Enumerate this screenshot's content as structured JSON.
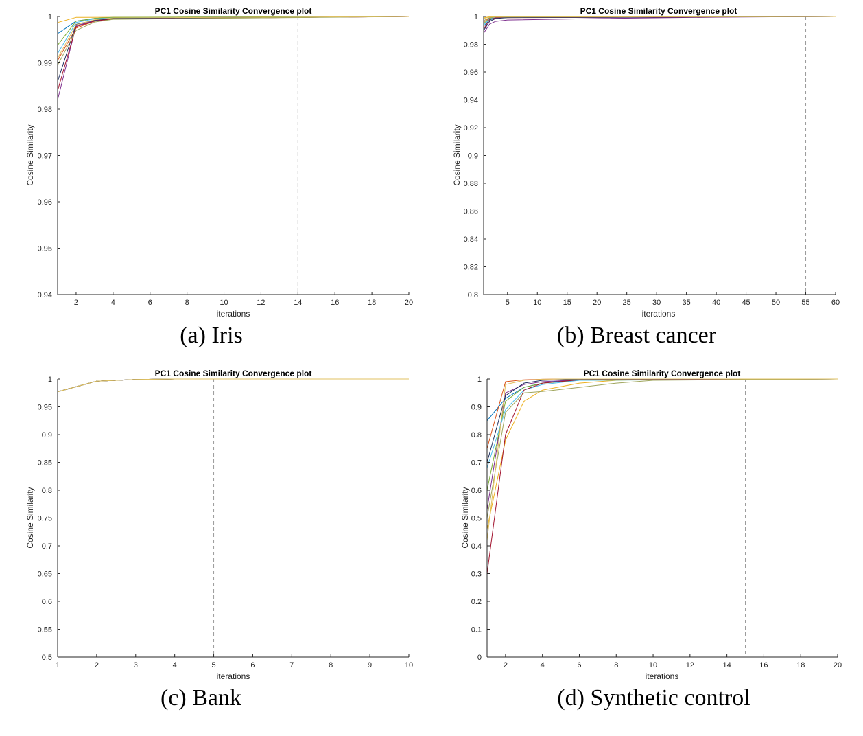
{
  "palette": [
    "#0072BD",
    "#D95319",
    "#EDB120",
    "#7E2F8E",
    "#77AC30",
    "#4DBEEE",
    "#A2142F",
    "#1F2F5F",
    "#9FA55C",
    "#E0C060"
  ],
  "chart_data": [
    {
      "type": "line",
      "title": "PC1 Cosine Similarity Convergence plot",
      "xlabel": "iterations",
      "ylabel": "Cosine Similarity",
      "caption": "(a) Iris",
      "xlim": [
        1,
        20
      ],
      "ylim": [
        0.94,
        1
      ],
      "xticks": [
        2,
        4,
        6,
        8,
        10,
        12,
        14,
        16,
        18,
        20
      ],
      "yticks": [
        0.94,
        0.95,
        0.96,
        0.97,
        0.98,
        0.99,
        1
      ],
      "vline": 14,
      "series": [
        {
          "x": [
            1,
            2,
            3,
            4,
            20
          ],
          "y": [
            0.9963,
            0.999,
            0.9996,
            0.9998,
            1.0
          ]
        },
        {
          "x": [
            1,
            2,
            3,
            4,
            20
          ],
          "y": [
            0.9905,
            0.9975,
            0.999,
            0.9995,
            1.0
          ]
        },
        {
          "x": [
            1,
            2,
            20
          ],
          "y": [
            0.9987,
            0.9998,
            1.0
          ]
        },
        {
          "x": [
            1,
            2,
            3,
            4,
            20
          ],
          "y": [
            0.982,
            0.998,
            0.9991,
            0.9995,
            1.0
          ]
        },
        {
          "x": [
            1,
            2,
            3,
            4,
            20
          ],
          "y": [
            0.9938,
            0.999,
            0.9996,
            0.9998,
            1.0
          ]
        },
        {
          "x": [
            1,
            2,
            3,
            4,
            20
          ],
          "y": [
            0.992,
            0.9987,
            0.9995,
            0.9997,
            1.0
          ]
        },
        {
          "x": [
            1,
            2,
            3,
            4,
            20
          ],
          "y": [
            0.984,
            0.9978,
            0.999,
            0.9995,
            1.0
          ]
        },
        {
          "x": [
            1,
            2,
            3,
            4,
            20
          ],
          "y": [
            0.986,
            0.9983,
            0.9992,
            0.9996,
            1.0
          ]
        },
        {
          "x": [
            1,
            2,
            3,
            4,
            20
          ],
          "y": [
            0.9895,
            0.997,
            0.9988,
            0.9994,
            1.0
          ]
        },
        {
          "x": [
            1,
            2,
            3,
            4,
            20
          ],
          "y": [
            0.991,
            0.9982,
            0.9993,
            0.9997,
            1.0
          ]
        }
      ]
    },
    {
      "type": "line",
      "title": "PC1 Cosine Similarity Convergence plot",
      "xlabel": "iterations",
      "ylabel": "Cosine Similarity",
      "caption": "(b) Breast cancer",
      "xlim": [
        1,
        60
      ],
      "ylim": [
        0.8,
        1
      ],
      "xticks": [
        5,
        10,
        15,
        20,
        25,
        30,
        35,
        40,
        45,
        50,
        55,
        60
      ],
      "yticks": [
        0.8,
        0.82,
        0.84,
        0.86,
        0.88,
        0.9,
        0.92,
        0.94,
        0.96,
        0.98,
        1
      ],
      "vline": 55,
      "series": [
        {
          "x": [
            1,
            2,
            3,
            5,
            60
          ],
          "y": [
            0.993,
            0.9975,
            0.999,
            0.9995,
            1.0
          ]
        },
        {
          "x": [
            1,
            2,
            3,
            60
          ],
          "y": [
            0.996,
            0.999,
            0.9996,
            1.0
          ]
        },
        {
          "x": [
            1,
            2,
            60
          ],
          "y": [
            0.999,
            0.9998,
            1.0
          ]
        },
        {
          "x": [
            1,
            2,
            3,
            5,
            20,
            40,
            60
          ],
          "y": [
            0.988,
            0.9945,
            0.9965,
            0.9975,
            0.9985,
            0.9995,
            1.0
          ]
        },
        {
          "x": [
            1,
            2,
            3,
            60
          ],
          "y": [
            0.995,
            0.9985,
            0.9994,
            1.0
          ]
        },
        {
          "x": [
            1,
            2,
            3,
            60
          ],
          "y": [
            0.994,
            0.9982,
            0.9993,
            1.0
          ]
        },
        {
          "x": [
            1,
            2,
            3,
            60
          ],
          "y": [
            0.991,
            0.9978,
            0.9991,
            1.0
          ]
        },
        {
          "x": [
            1,
            2,
            3,
            5,
            60
          ],
          "y": [
            0.99,
            0.9965,
            0.9985,
            0.9992,
            1.0
          ]
        },
        {
          "x": [
            1,
            2,
            3,
            60
          ],
          "y": [
            0.997,
            0.9992,
            0.9997,
            1.0
          ]
        },
        {
          "x": [
            1,
            2,
            60
          ],
          "y": [
            0.9985,
            0.9996,
            1.0
          ]
        }
      ]
    },
    {
      "type": "line",
      "title": "PC1 Cosine Similarity Convergence plot",
      "xlabel": "iterations",
      "ylabel": "Cosine Similarity",
      "caption": "(c) Bank",
      "xlim": [
        1,
        10
      ],
      "ylim": [
        0.5,
        1
      ],
      "xticks": [
        1,
        2,
        3,
        4,
        5,
        6,
        7,
        8,
        9,
        10
      ],
      "yticks": [
        0.5,
        0.55,
        0.6,
        0.65,
        0.7,
        0.75,
        0.8,
        0.85,
        0.9,
        0.95,
        1
      ],
      "vline": 5,
      "series": [
        {
          "x": [
            1,
            2,
            3,
            4,
            10
          ],
          "y": [
            0.977,
            0.996,
            0.999,
            1.0,
            1.0
          ]
        },
        {
          "x": [
            1,
            2,
            3,
            4,
            10
          ],
          "y": [
            0.977,
            0.996,
            0.999,
            1.0,
            1.0
          ]
        },
        {
          "x": [
            1,
            2,
            3,
            4,
            10
          ],
          "y": [
            0.977,
            0.996,
            0.999,
            1.0,
            1.0
          ]
        },
        {
          "x": [
            1,
            2,
            3,
            4,
            10
          ],
          "y": [
            0.977,
            0.996,
            0.999,
            1.0,
            1.0
          ]
        },
        {
          "x": [
            1,
            2,
            3,
            4,
            10
          ],
          "y": [
            0.977,
            0.996,
            0.999,
            1.0,
            1.0
          ]
        },
        {
          "x": [
            1,
            2,
            3,
            4,
            10
          ],
          "y": [
            0.977,
            0.996,
            0.999,
            1.0,
            1.0
          ]
        },
        {
          "x": [
            1,
            2,
            3,
            4,
            10
          ],
          "y": [
            0.977,
            0.996,
            0.999,
            1.0,
            1.0
          ]
        },
        {
          "x": [
            1,
            2,
            3,
            4,
            10
          ],
          "y": [
            0.977,
            0.996,
            0.999,
            1.0,
            1.0
          ]
        },
        {
          "x": [
            1,
            2,
            3,
            4,
            10
          ],
          "y": [
            0.977,
            0.996,
            0.999,
            1.0,
            1.0
          ]
        },
        {
          "x": [
            1,
            2,
            3,
            4,
            10
          ],
          "y": [
            0.977,
            0.996,
            0.999,
            1.0,
            1.0
          ]
        }
      ]
    },
    {
      "type": "line",
      "title": "PC1 Cosine Similarity Convergence plot",
      "xlabel": "iterations",
      "ylabel": "Cosine Similarity",
      "caption": "(d) Synthetic control",
      "xlim": [
        1,
        20
      ],
      "ylim": [
        0,
        1
      ],
      "xticks": [
        2,
        4,
        6,
        8,
        10,
        12,
        14,
        16,
        18,
        20
      ],
      "yticks": [
        0,
        0.1,
        0.2,
        0.3,
        0.4,
        0.5,
        0.6,
        0.7,
        0.8,
        0.9,
        1
      ],
      "vline": 15,
      "series": [
        {
          "x": [
            1,
            2,
            3,
            4,
            5,
            6,
            8,
            20
          ],
          "y": [
            0.85,
            0.93,
            0.97,
            0.985,
            0.993,
            0.997,
            0.999,
            1.0
          ]
        },
        {
          "x": [
            1,
            2,
            3,
            4,
            5,
            6,
            20
          ],
          "y": [
            0.75,
            0.99,
            0.997,
            0.999,
            1.0,
            1.0,
            1.0
          ]
        },
        {
          "x": [
            1,
            2,
            3,
            4,
            6,
            8,
            10,
            20
          ],
          "y": [
            0.46,
            0.78,
            0.92,
            0.96,
            0.985,
            0.995,
            0.999,
            1.0
          ]
        },
        {
          "x": [
            1,
            2,
            3,
            4,
            6,
            20
          ],
          "y": [
            0.53,
            0.95,
            0.98,
            0.99,
            0.997,
            1.0
          ]
        },
        {
          "x": [
            1,
            2,
            3,
            4,
            6,
            20
          ],
          "y": [
            0.6,
            0.92,
            0.97,
            0.985,
            0.995,
            1.0
          ]
        },
        {
          "x": [
            1,
            2,
            3,
            4,
            6,
            20
          ],
          "y": [
            0.68,
            0.89,
            0.96,
            0.98,
            0.995,
            1.0
          ]
        },
        {
          "x": [
            1,
            2,
            3,
            4,
            6,
            20
          ],
          "y": [
            0.3,
            0.8,
            0.96,
            0.985,
            0.997,
            1.0
          ]
        },
        {
          "x": [
            1,
            2,
            3,
            4,
            6,
            20
          ],
          "y": [
            0.7,
            0.94,
            0.985,
            0.995,
            0.999,
            1.0
          ]
        },
        {
          "x": [
            1,
            2,
            3,
            4,
            6,
            8,
            10,
            20
          ],
          "y": [
            0.5,
            0.88,
            0.95,
            0.955,
            0.97,
            0.985,
            0.995,
            1.0
          ]
        },
        {
          "x": [
            1,
            2,
            3,
            4,
            5,
            20
          ],
          "y": [
            0.42,
            0.98,
            0.995,
            0.999,
            1.0,
            1.0
          ]
        }
      ]
    }
  ]
}
